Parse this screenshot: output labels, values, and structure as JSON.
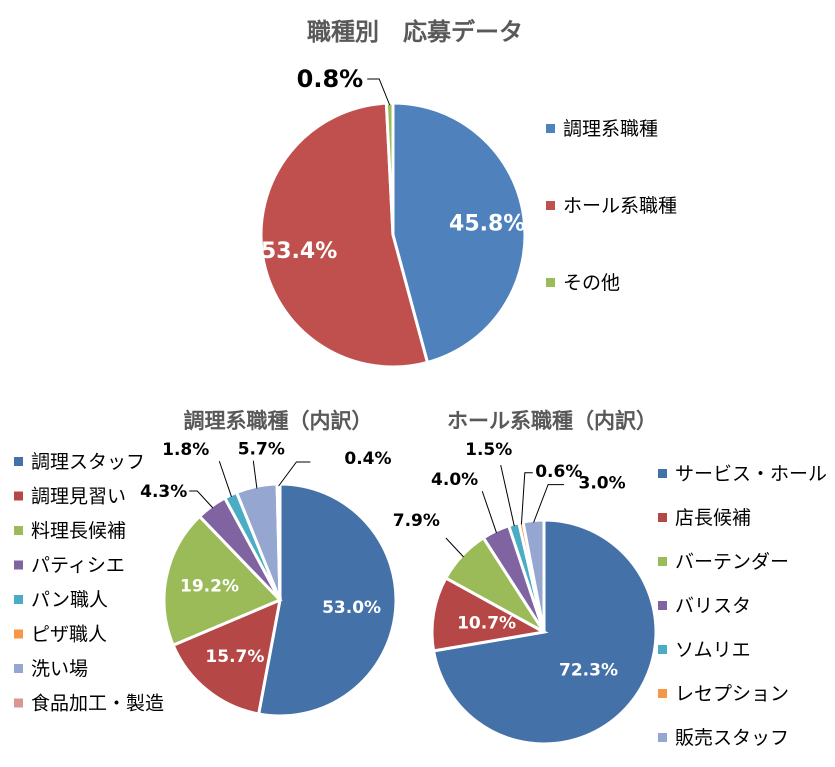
{
  "colors": {
    "blue": "#4F81BD",
    "red": "#C0504D",
    "green": "#9BBB59",
    "purple": "#8064A2",
    "teal": "#4BACC6",
    "orange": "#F79646",
    "lightblue": "#95A7D1",
    "pink": "#D99694",
    "darkblue": "#4472A8",
    "darkred": "#B54747",
    "title": "#595959"
  },
  "chart_data": [
    {
      "type": "pie",
      "title": "職種別　応募データ",
      "categories": [
        "調理系職種",
        "ホール系職種",
        "その他"
      ],
      "values": [
        45.8,
        53.4,
        0.8
      ],
      "labels": [
        "45.8%",
        "53.4%",
        "0.8%"
      ],
      "legend": "right"
    },
    {
      "type": "pie",
      "title": "調理系職種（内訳）",
      "categories": [
        "調理スタッフ",
        "調理見習い",
        "料理長候補",
        "パティシエ",
        "パン職人",
        "ピザ職人",
        "洗い場",
        "食品加工・製造"
      ],
      "values": [
        53.0,
        15.7,
        19.2,
        4.3,
        1.8,
        0.0,
        5.7,
        0.4
      ],
      "labels": [
        "53.0%",
        "15.7%",
        "19.2%",
        "4.3%",
        "1.8%",
        "",
        "5.7%",
        "0.4%"
      ],
      "legend": "left"
    },
    {
      "type": "pie",
      "title": "ホール系職種（内訳）",
      "categories": [
        "サービス・ホール",
        "店長候補",
        "バーテンダー",
        "バリスタ",
        "ソムリエ",
        "レセプション",
        "販売スタッフ"
      ],
      "values": [
        72.3,
        10.7,
        7.9,
        4.0,
        1.5,
        0.6,
        3.0
      ],
      "labels": [
        "72.3%",
        "10.7%",
        "7.9%",
        "4.0%",
        "1.5%",
        "0.6%",
        "3.0%"
      ],
      "legend": "right"
    }
  ]
}
